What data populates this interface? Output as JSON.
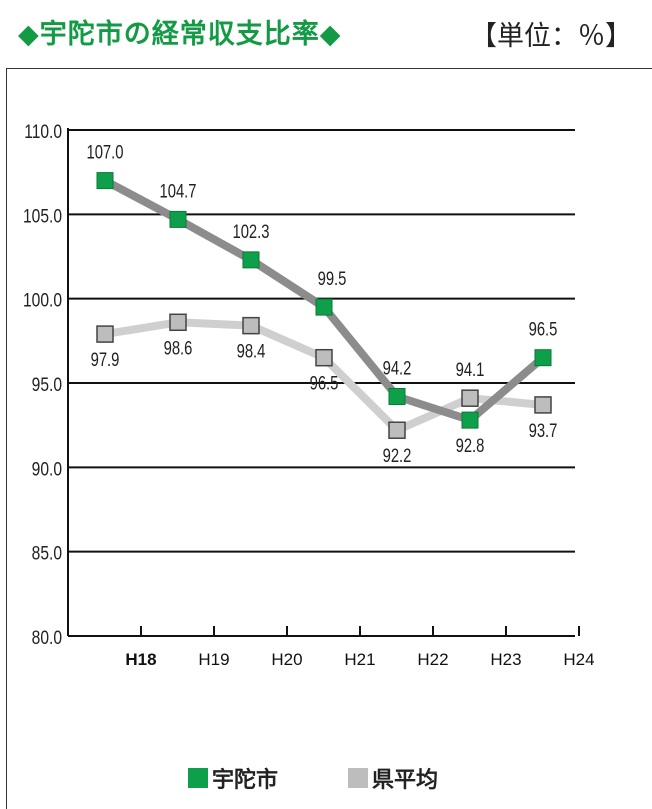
{
  "header": {
    "title": "◆宇陀市の経常収支比率◆",
    "unit": "【単位：％】"
  },
  "chart_data": {
    "type": "line",
    "categories": [
      "H18",
      "H19",
      "H20",
      "H21",
      "H22",
      "H23",
      "H24"
    ],
    "ylim": [
      80.0,
      110.0
    ],
    "yticks": [
      "80.0",
      "85.0",
      "90.0",
      "95.0",
      "100.0",
      "105.0",
      "110.0"
    ],
    "series": [
      {
        "name": "宇陀市",
        "values": [
          107.0,
          104.7,
          102.3,
          99.5,
          94.2,
          92.8,
          96.5
        ],
        "labels": [
          "107.0",
          "104.7",
          "102.3",
          "99.5",
          "94.2",
          "92.8",
          "96.5"
        ],
        "marker_color": "#0e9f4a",
        "line_color": "#8c8c8c"
      },
      {
        "name": "県平均",
        "values": [
          97.9,
          98.6,
          98.4,
          96.5,
          92.2,
          94.1,
          93.7
        ],
        "labels": [
          "97.9",
          "98.6",
          "98.4",
          "96.5",
          "92.2",
          "94.1",
          "93.7"
        ],
        "marker_color": "#bdbdbd",
        "line_color": "#cfcfcf"
      }
    ],
    "grid": true
  },
  "legend": {
    "items": [
      "宇陀市",
      "県平均"
    ]
  }
}
